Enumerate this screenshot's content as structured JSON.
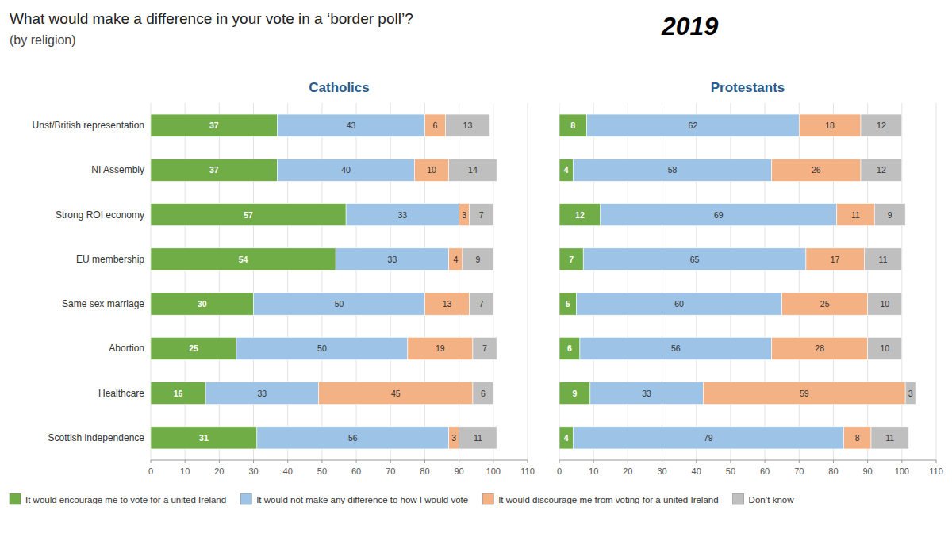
{
  "title": "What would make a difference in your vote in a ‘border poll’?",
  "subtitle": "(by religion)",
  "annotations": [
    "2019"
  ],
  "chart_data": [
    {
      "type": "bar",
      "title": "Catholics",
      "orientation": "horizontal",
      "stacked": true,
      "data_labels": true,
      "grid": true,
      "legend": "lower left",
      "categories": [
        "Unst/British representation",
        "NI Assembly",
        "Strong ROI economy",
        "EU membership",
        "Same sex marriage",
        "Abortion",
        "Healthcare",
        "Scottish independence"
      ],
      "series": [
        {
          "name": "It would encourage me to vote for a united Ireland",
          "color": "#70AD47",
          "values": [
            37,
            37,
            57,
            54,
            30,
            25,
            16,
            31
          ]
        },
        {
          "name": "It would not make any difference to how I would vote",
          "color": "#9DC3E6",
          "values": [
            43,
            40,
            33,
            33,
            50,
            50,
            33,
            56
          ]
        },
        {
          "name": "It would discourage me from voting for a united Ireland",
          "color": "#F4B183",
          "values": [
            6,
            10,
            3,
            4,
            13,
            19,
            45,
            3
          ]
        },
        {
          "name": "Don’t know",
          "color": "#BFBFBF",
          "values": [
            13,
            14,
            7,
            9,
            7,
            7,
            6,
            11
          ]
        }
      ],
      "xlim": [
        0,
        110
      ],
      "xticks": [
        0,
        10,
        20,
        30,
        40,
        50,
        60,
        70,
        80,
        90,
        100,
        110
      ]
    },
    {
      "type": "bar",
      "title": "Protestants",
      "orientation": "horizontal",
      "stacked": true,
      "data_labels": true,
      "grid": true,
      "tick_labels": "x",
      "categories": [
        "Unst/British representation",
        "NI Assembly",
        "Strong ROI economy",
        "EU membership",
        "Same sex marriage",
        "Abortion",
        "Healthcare",
        "Scottish independence"
      ],
      "series": [
        {
          "name": "It would encourage me to vote for a united Ireland",
          "color": "#70AD47",
          "values": [
            8,
            4,
            12,
            7,
            5,
            6,
            9,
            4
          ]
        },
        {
          "name": "It would not make any difference to how I would vote",
          "color": "#9DC3E6",
          "values": [
            62,
            58,
            69,
            65,
            60,
            56,
            33,
            79
          ]
        },
        {
          "name": "It would discourage me from voting for a united Ireland",
          "color": "#F4B183",
          "values": [
            18,
            26,
            11,
            17,
            25,
            28,
            59,
            8
          ]
        },
        {
          "name": "Don’t know",
          "color": "#BFBFBF",
          "values": [
            12,
            12,
            9,
            11,
            10,
            10,
            3,
            11
          ]
        }
      ],
      "xlim": [
        0,
        110
      ],
      "xticks": [
        0,
        10,
        20,
        30,
        40,
        50,
        60,
        70,
        80,
        90,
        100,
        110
      ]
    }
  ]
}
